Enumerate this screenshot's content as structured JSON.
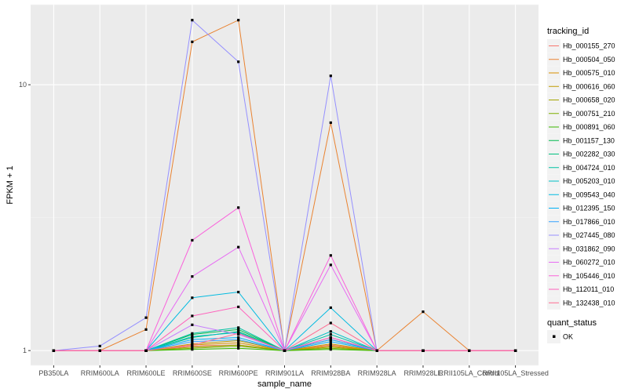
{
  "chart_data": {
    "type": "line",
    "x_axis": {
      "title": "sample_name",
      "categories": [
        "PB350LA",
        "RRIM600LA",
        "RRIM600LE",
        "RRIM600SE",
        "RRIM600PE",
        "RRIM901LA",
        "RRIM928BA",
        "RRIM928LA",
        "RRIM928LE",
        "RRII105LA_Control",
        "RRII105LA_Stressed"
      ],
      "tick_labels": [
        "PB350LA",
        "RRIM600LA",
        "RRIM600LE",
        "RRIM600SE",
        "RRIM600PE",
        "RRIM901LA",
        "RRIM928BA",
        "RRIM928LA",
        "RRIM928LE",
        "RRII105LA_Control",
        "RRII105LA_Stressed"
      ]
    },
    "y_axis": {
      "title": "FPKM + 1",
      "scale": "log10",
      "ylim": [
        0.88,
        20
      ],
      "tick_values": [
        1,
        10
      ],
      "tick_labels": [
        "1",
        "10"
      ]
    },
    "legend_color": {
      "title": "tracking_id",
      "position": "right"
    },
    "legend_shape": {
      "title": "quant_status",
      "entries": [
        {
          "label": "OK",
          "marker": "square"
        }
      ]
    },
    "series": [
      {
        "name": "Hb_000155_270",
        "color": "#F8766D",
        "values": [
          1,
          1,
          1,
          1.04,
          1.05,
          1,
          1.05,
          1,
          1,
          1,
          1
        ]
      },
      {
        "name": "Hb_000504_050",
        "color": "#EA8331",
        "values": [
          1,
          1,
          1.2,
          14.5,
          17.5,
          1,
          7.2,
          1,
          1.4,
          1,
          1
        ]
      },
      {
        "name": "Hb_000575_010",
        "color": "#D89000",
        "values": [
          1,
          1,
          1,
          1.05,
          1.07,
          1,
          1.04,
          1,
          1,
          1,
          1
        ]
      },
      {
        "name": "Hb_000616_060",
        "color": "#C09B00",
        "values": [
          1,
          1,
          1,
          1.06,
          1.09,
          1,
          1.06,
          1,
          1,
          1,
          1
        ]
      },
      {
        "name": "Hb_000658_020",
        "color": "#A3A500",
        "values": [
          1,
          1,
          1,
          1.03,
          1.05,
          1,
          1.03,
          1,
          1,
          1,
          1
        ]
      },
      {
        "name": "Hb_000751_210",
        "color": "#7CAE00",
        "values": [
          1,
          1,
          1,
          1.02,
          1.04,
          1,
          1.02,
          1,
          1,
          1,
          1
        ]
      },
      {
        "name": "Hb_000891_060",
        "color": "#39B600",
        "values": [
          1,
          1,
          1,
          1.01,
          1.02,
          1,
          1.01,
          1,
          1,
          1,
          1
        ]
      },
      {
        "name": "Hb_001157_130",
        "color": "#00BB4E",
        "values": [
          1,
          1,
          1,
          1.15,
          1.2,
          1,
          1.1,
          1,
          1,
          1,
          1
        ]
      },
      {
        "name": "Hb_002282_030",
        "color": "#00BF7D",
        "values": [
          1,
          1,
          1,
          1.12,
          1.18,
          1,
          1.12,
          1,
          1,
          1,
          1
        ]
      },
      {
        "name": "Hb_004724_010",
        "color": "#00C1A3",
        "values": [
          1,
          1,
          1,
          1.16,
          1.22,
          1,
          1.15,
          1,
          1,
          1,
          1
        ]
      },
      {
        "name": "Hb_005203_010",
        "color": "#00BFC4",
        "values": [
          1,
          1,
          1,
          1.13,
          1.17,
          1,
          1.18,
          1,
          1,
          1,
          1
        ]
      },
      {
        "name": "Hb_009543_040",
        "color": "#00BAE0",
        "values": [
          1,
          1,
          1,
          1.58,
          1.66,
          1,
          1.45,
          1,
          1,
          1,
          1
        ]
      },
      {
        "name": "Hb_012395_150",
        "color": "#00B0F6",
        "values": [
          1,
          1,
          1,
          1.1,
          1.12,
          1,
          1.08,
          1,
          1,
          1,
          1
        ]
      },
      {
        "name": "Hb_017866_010",
        "color": "#35A2FF",
        "values": [
          1,
          1,
          1,
          1.08,
          1.1,
          1,
          1.1,
          1,
          1,
          1,
          1
        ]
      },
      {
        "name": "Hb_027445_080",
        "color": "#9590FF",
        "values": [
          1,
          1.04,
          1.33,
          17.5,
          12.2,
          1,
          10.8,
          1,
          1,
          1,
          1
        ]
      },
      {
        "name": "Hb_031862_090",
        "color": "#C77CFF",
        "values": [
          1,
          1,
          1,
          1.25,
          1.15,
          1,
          1.12,
          1,
          1,
          1,
          1
        ]
      },
      {
        "name": "Hb_060272_010",
        "color": "#E76BF3",
        "values": [
          1,
          1,
          1,
          1.9,
          2.45,
          1,
          2.1,
          1,
          1,
          1,
          1
        ]
      },
      {
        "name": "Hb_105446_010",
        "color": "#FA62DB",
        "values": [
          1,
          1,
          1,
          2.6,
          3.45,
          1,
          2.28,
          1,
          1,
          1,
          1
        ]
      },
      {
        "name": "Hb_112011_010",
        "color": "#FF62BC",
        "values": [
          1,
          1,
          1,
          1.35,
          1.46,
          1,
          1.12,
          1,
          1,
          1,
          1
        ]
      },
      {
        "name": "Hb_132438_010",
        "color": "#FF6C91",
        "values": [
          1,
          1,
          1,
          1.05,
          1.16,
          1,
          1.27,
          1,
          1,
          1,
          1
        ]
      }
    ]
  }
}
